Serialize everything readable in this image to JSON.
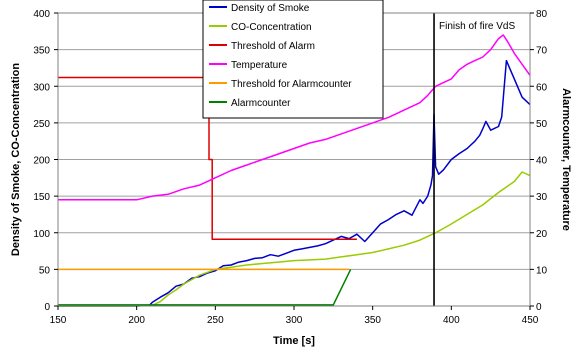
{
  "chart_data": {
    "type": "line",
    "xlabel": "Time [s]",
    "ylabel_left": "Density of Smoke, CO-Concentration",
    "ylabel_right": "Alarmcounter, Temperature",
    "xlim": [
      150,
      450
    ],
    "ylim_left": [
      0,
      400
    ],
    "ylim_right": [
      0,
      80
    ],
    "x_ticks": [
      150,
      200,
      250,
      300,
      350,
      400,
      450
    ],
    "y_left_ticks": [
      0,
      50,
      100,
      150,
      200,
      250,
      300,
      350,
      400
    ],
    "y_right_ticks": [
      0,
      10,
      20,
      30,
      40,
      50,
      60,
      70,
      80
    ],
    "grid": "horizontal",
    "legend_position": "top-center",
    "annotation": {
      "text": "Finish of fire VdS",
      "x": 389
    },
    "series": [
      {
        "name": "Density of Smoke",
        "axis": "left",
        "color": "#0000cc",
        "x": [
          150,
          200,
          208,
          210,
          215,
          220,
          225,
          230,
          235,
          240,
          245,
          250,
          255,
          260,
          265,
          270,
          275,
          280,
          285,
          290,
          295,
          300,
          305,
          310,
          315,
          320,
          325,
          330,
          335,
          340,
          345,
          350,
          355,
          360,
          365,
          370,
          375,
          380,
          382,
          385,
          387,
          388,
          389,
          390,
          392,
          395,
          400,
          405,
          410,
          415,
          418,
          420,
          422,
          425,
          430,
          432,
          435,
          440,
          445,
          450
        ],
        "values": [
          0,
          0,
          1,
          5,
          12,
          18,
          27,
          30,
          38,
          40,
          45,
          48,
          55,
          56,
          60,
          62,
          65,
          66,
          70,
          68,
          72,
          76,
          78,
          80,
          82,
          85,
          90,
          95,
          92,
          98,
          88,
          100,
          112,
          118,
          125,
          130,
          124,
          145,
          140,
          150,
          165,
          178,
          262,
          190,
          180,
          186,
          200,
          208,
          215,
          225,
          233,
          242,
          252,
          240,
          245,
          258,
          335,
          310,
          285,
          275
        ]
      },
      {
        "name": "CO-Concentration",
        "axis": "left",
        "color": "#99cc00",
        "x": [
          150,
          200,
          210,
          215,
          220,
          225,
          230,
          235,
          240,
          245,
          250,
          260,
          270,
          280,
          290,
          300,
          310,
          320,
          330,
          340,
          350,
          360,
          370,
          380,
          385,
          390,
          395,
          400,
          410,
          420,
          430,
          440,
          445,
          450
        ],
        "values": [
          0,
          0,
          1,
          6,
          15,
          22,
          30,
          36,
          42,
          46,
          50,
          53,
          56,
          58,
          60,
          62,
          63,
          64,
          67,
          70,
          73,
          78,
          83,
          90,
          95,
          100,
          106,
          112,
          125,
          138,
          155,
          170,
          183,
          178
        ]
      },
      {
        "name": "Threshold of Alarm",
        "axis": "left",
        "color": "#dd0000",
        "x": [
          150,
          246,
          246,
          248,
          248,
          340
        ],
        "values": [
          312,
          312,
          200,
          200,
          91,
          91
        ]
      },
      {
        "name": "Temperature",
        "axis": "right",
        "color": "#ff00ff",
        "x": [
          150,
          200,
          210,
          220,
          230,
          240,
          250,
          260,
          270,
          280,
          290,
          300,
          310,
          320,
          330,
          340,
          350,
          360,
          370,
          380,
          385,
          390,
          395,
          400,
          405,
          410,
          415,
          420,
          425,
          430,
          433,
          436,
          440,
          445,
          450
        ],
        "values": [
          29,
          29,
          30,
          30.5,
          32,
          33,
          35,
          37,
          38.5,
          40,
          41.5,
          43,
          44.5,
          45.5,
          47,
          48.5,
          50,
          51.5,
          53.5,
          55.5,
          57.5,
          60,
          61,
          62,
          64.5,
          66,
          67,
          68,
          70,
          73,
          74,
          72,
          69,
          66,
          63
        ]
      },
      {
        "name": "Threshold for Alarmcounter",
        "axis": "right",
        "color": "#ff9900",
        "x": [
          150,
          335
        ],
        "values": [
          10,
          10
        ]
      },
      {
        "name": "Alarmcounter",
        "axis": "right",
        "color": "#008000",
        "x": [
          150,
          325,
          336
        ],
        "values": [
          0.3,
          0.3,
          10
        ]
      }
    ]
  }
}
